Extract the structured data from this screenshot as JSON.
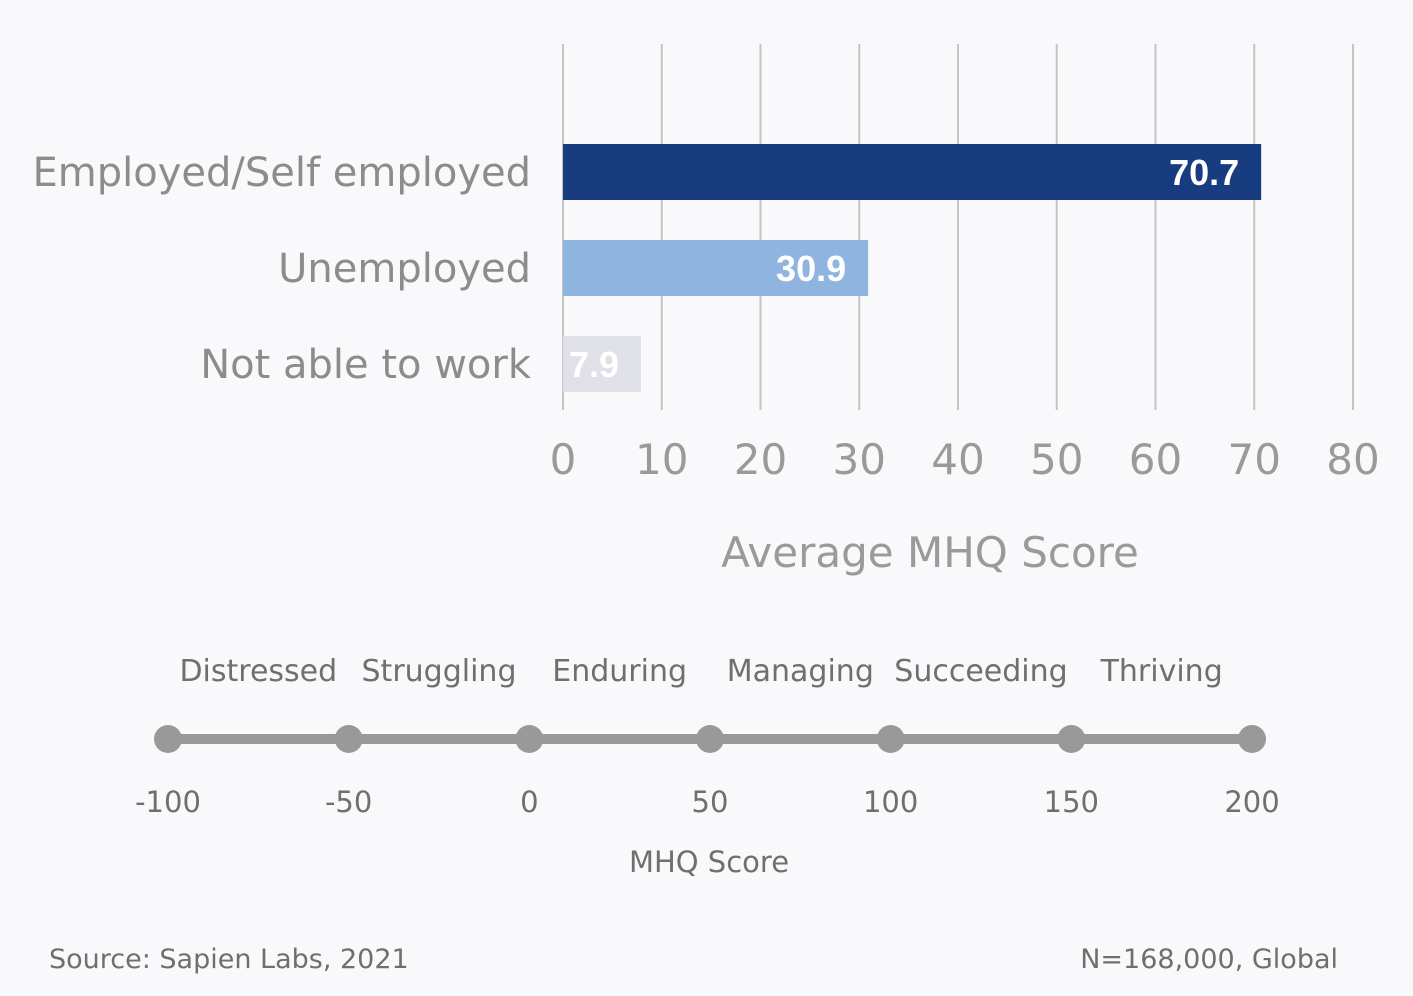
{
  "chart_data": [
    {
      "type": "bar",
      "orientation": "horizontal",
      "categories": [
        "Employed/Self employed",
        "Unemployed",
        "Not able to work"
      ],
      "values": [
        70.7,
        30.9,
        7.9
      ],
      "data_labels": [
        "70.7",
        "30.9",
        "7.9"
      ],
      "bar_colors": [
        "#173c80",
        "#8fb4e0",
        "#e0e0e8"
      ],
      "xlabel": "Average MHQ Score",
      "xlim": [
        0,
        80
      ],
      "xticks": [
        0,
        10,
        20,
        30,
        40,
        50,
        60,
        70,
        80
      ],
      "grid": "vertical"
    },
    {
      "type": "scale",
      "xlabel": "MHQ Score",
      "ticks": [
        -100,
        -50,
        0,
        50,
        100,
        150,
        200
      ],
      "bands": [
        "Distressed",
        "Struggling",
        "Enduring",
        "Managing",
        "Succeeding",
        "Thriving"
      ],
      "color": "#999999"
    }
  ],
  "footer": {
    "source": "Source: Sapien Labs, 2021",
    "sample": "N=168,000, Global"
  }
}
